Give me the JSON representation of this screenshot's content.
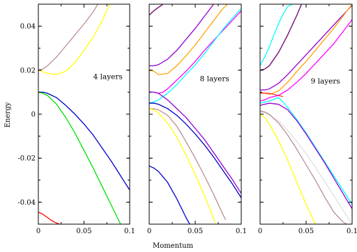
{
  "chart_data": {
    "type": "line",
    "xlabel": "Momentum",
    "ylabel": "Energy",
    "xlim": [
      0,
      0.1
    ],
    "ylim": [
      -0.05,
      0.05
    ],
    "x_ticks": [
      {
        "value": 0,
        "label": "0"
      },
      {
        "value": 0.05,
        "label": "0.05"
      },
      {
        "value": 0.1,
        "label": "0.1"
      }
    ],
    "y_ticks": [
      {
        "value": 0.04,
        "label": "0.04"
      },
      {
        "value": 0.02,
        "label": "0.02"
      },
      {
        "value": 0,
        "label": "0"
      },
      {
        "value": -0.02,
        "label": "-0.02"
      },
      {
        "value": -0.04,
        "label": "-0.04"
      }
    ],
    "panels": [
      {
        "annotation": "4 layers",
        "annotation_at": [
          0.06,
          0.016
        ],
        "series": [
          {
            "color": "#bc8f8f",
            "x": [
              0,
              0.005,
              0.01,
              0.02,
              0.03,
              0.04,
              0.05,
              0.06,
              0.065
            ],
            "y": [
              0.02,
              0.0205,
              0.022,
              0.026,
              0.031,
              0.036,
              0.041,
              0.0465,
              0.05
            ]
          },
          {
            "color": "#ffff00",
            "x": [
              0,
              0.01,
              0.02,
              0.03,
              0.04,
              0.05,
              0.06,
              0.07,
              0.078
            ],
            "y": [
              0.02,
              0.0185,
              0.018,
              0.0195,
              0.0235,
              0.029,
              0.035,
              0.0425,
              0.05
            ]
          },
          {
            "color": "#0000cd",
            "x": [
              0,
              0.005,
              0.01,
              0.02,
              0.03,
              0.04,
              0.05,
              0.06,
              0.07,
              0.08,
              0.09,
              0.1
            ],
            "y": [
              0.01,
              0.01,
              0.0095,
              0.0075,
              0.004,
              0.0,
              -0.0045,
              -0.0095,
              -0.0155,
              -0.0215,
              -0.028,
              -0.0345
            ]
          },
          {
            "color": "#00e000",
            "x": [
              0,
              0.005,
              0.01,
              0.02,
              0.03,
              0.04,
              0.05,
              0.06,
              0.07,
              0.08,
              0.09
            ],
            "y": [
              0.01,
              0.0095,
              0.0085,
              0.0045,
              -0.0015,
              -0.0085,
              -0.0165,
              -0.0245,
              -0.033,
              -0.0415,
              -0.05
            ]
          },
          {
            "color": "#ff0000",
            "x": [
              0,
              0.005,
              0.01,
              0.015,
              0.02,
              0.023
            ],
            "y": [
              -0.0445,
              -0.0455,
              -0.047,
              -0.0485,
              -0.0495,
              -0.05
            ]
          }
        ]
      },
      {
        "annotation": "8 layers",
        "annotation_at": [
          0.055,
          0.015
        ],
        "series": [
          {
            "color": "#6b006b",
            "x": [
              0,
              0.005,
              0.01,
              0.015
            ],
            "y": [
              0.045,
              0.047,
              0.0485,
              0.05
            ]
          },
          {
            "color": "#9400d3",
            "x": [
              0,
              0.005,
              0.01,
              0.02,
              0.03,
              0.04,
              0.05,
              0.06,
              0.07
            ],
            "y": [
              0.022,
              0.022,
              0.0225,
              0.025,
              0.029,
              0.034,
              0.039,
              0.0445,
              0.05
            ]
          },
          {
            "color": "#ffa500",
            "x": [
              0,
              0.005,
              0.01,
              0.02,
              0.03,
              0.04,
              0.05,
              0.06,
              0.07,
              0.08,
              0.085
            ],
            "y": [
              0.02,
              0.0195,
              0.018,
              0.0185,
              0.022,
              0.0265,
              0.0315,
              0.037,
              0.0425,
              0.048,
              0.05
            ]
          },
          {
            "color": "#ff00ff",
            "x": [
              0,
              0.005,
              0.01,
              0.015,
              0.02,
              0.03,
              0.04,
              0.05,
              0.06,
              0.07,
              0.08,
              0.09,
              0.1
            ],
            "y": [
              0.01,
              0.01,
              0.0095,
              0.01,
              0.0115,
              0.0155,
              0.0195,
              0.024,
              0.029,
              0.0335,
              0.038,
              0.0425,
              0.047
            ]
          },
          {
            "color": "#00ffff",
            "x": [
              0,
              0.005,
              0.01,
              0.015,
              0.02,
              0.03,
              0.04,
              0.05,
              0.06,
              0.07,
              0.08,
              0.09,
              0.1
            ],
            "y": [
              0.005,
              0.0055,
              0.0065,
              0.008,
              0.0095,
              0.0135,
              0.018,
              0.0225,
              0.0275,
              0.033,
              0.0385,
              0.0435,
              0.048
            ]
          },
          {
            "color": "#9400d3",
            "x": [
              0,
              0.005,
              0.01,
              0.02,
              0.03,
              0.04,
              0.05,
              0.06,
              0.07,
              0.08,
              0.09,
              0.1
            ],
            "y": [
              0.01,
              0.01,
              0.0095,
              0.0065,
              0.0025,
              -0.0015,
              -0.0065,
              -0.0115,
              -0.0175,
              -0.0235,
              -0.0295,
              -0.036
            ]
          },
          {
            "color": "#0000cd",
            "x": [
              0,
              0.005,
              0.01,
              0.02,
              0.03,
              0.04,
              0.05,
              0.06,
              0.07,
              0.08,
              0.09,
              0.1
            ],
            "y": [
              0.005,
              0.005,
              0.0045,
              0.0025,
              -0.0005,
              -0.0045,
              -0.009,
              -0.014,
              -0.0195,
              -0.0255,
              -0.0315,
              -0.038
            ]
          },
          {
            "color": "#bc8f8f",
            "x": [
              0,
              0.005,
              0.01,
              0.02,
              0.03,
              0.04,
              0.05,
              0.06,
              0.07,
              0.08,
              0.083
            ],
            "y": [
              0.0025,
              0.0025,
              0.002,
              -0.0005,
              -0.0055,
              -0.0125,
              -0.02,
              -0.028,
              -0.0365,
              -0.0455,
              -0.048
            ]
          },
          {
            "color": "#ffff00",
            "x": [
              0,
              0.005,
              0.01,
              0.02,
              0.03,
              0.04,
              0.05,
              0.06,
              0.07,
              0.072
            ],
            "y": [
              0.0025,
              0.002,
              0.0005,
              -0.004,
              -0.0105,
              -0.0185,
              -0.0275,
              -0.037,
              -0.0475,
              -0.0495
            ]
          },
          {
            "color": "#0000cd",
            "x": [
              0,
              0.005,
              0.01,
              0.02,
              0.03,
              0.04,
              0.044
            ],
            "y": [
              -0.0235,
              -0.0245,
              -0.026,
              -0.031,
              -0.0385,
              -0.047,
              -0.05
            ]
          }
        ]
      },
      {
        "annotation": "9 layers",
        "annotation_at": [
          0.055,
          0.014
        ],
        "series": [
          {
            "color": "#6b006b",
            "x": [
              0,
              0.005,
              0.01,
              0.02,
              0.03,
              0.04,
              0.045
            ],
            "y": [
              0.02,
              0.0205,
              0.022,
              0.028,
              0.036,
              0.045,
              0.05
            ]
          },
          {
            "color": "#00ffff",
            "x": [
              0,
              0.005,
              0.01,
              0.015,
              0.02,
              0.025,
              0.03,
              0.035
            ],
            "y": [
              0.022,
              0.026,
              0.0305,
              0.036,
              0.041,
              0.0455,
              0.049,
              0.05
            ]
          },
          {
            "color": "#9400d3",
            "x": [
              0,
              0.005,
              0.01,
              0.02,
              0.03,
              0.04,
              0.05,
              0.06,
              0.07,
              0.08,
              0.09,
              0.1
            ],
            "y": [
              0.011,
              0.011,
              0.0115,
              0.014,
              0.018,
              0.0225,
              0.027,
              0.0315,
              0.036,
              0.0405,
              0.045,
              0.0495
            ]
          },
          {
            "color": "#ffa500",
            "x": [
              0,
              0.005,
              0.01,
              0.02,
              0.03,
              0.04,
              0.05,
              0.06,
              0.07,
              0.08,
              0.09,
              0.1
            ],
            "y": [
              0.01,
              0.0095,
              0.009,
              0.0105,
              0.0145,
              0.0195,
              0.024,
              0.029,
              0.034,
              0.039,
              0.0445,
              0.05
            ]
          },
          {
            "color": "#ff00ff",
            "x": [
              0,
              0.005,
              0.01,
              0.02,
              0.03,
              0.04,
              0.05,
              0.06,
              0.07,
              0.08,
              0.09,
              0.1
            ],
            "y": [
              0.006,
              0.0065,
              0.0075,
              0.0085,
              0.011,
              0.0145,
              0.0185,
              0.023,
              0.0275,
              0.032,
              0.0375,
              0.043
            ]
          },
          {
            "color": "#ff3030",
            "x": [
              0,
              0.005,
              0.01,
              0.015,
              0.02,
              0.025
            ],
            "y": [
              0.0095,
              0.0095,
              0.0095,
              0.009,
              0.0085,
              0.008
            ]
          },
          {
            "color": "#00ffff",
            "x": [
              0,
              0.005,
              0.01,
              0.02,
              0.025,
              0.03,
              0.04,
              0.05,
              0.06,
              0.07,
              0.08,
              0.09,
              0.1
            ],
            "y": [
              0.005,
              0.0055,
              0.006,
              0.0075,
              0.0055,
              0.003,
              -0.0025,
              -0.0085,
              -0.015,
              -0.0215,
              -0.028,
              -0.0345,
              -0.041
            ]
          },
          {
            "color": "#9400d3",
            "x": [
              0,
              0.005,
              0.01,
              0.02,
              0.03,
              0.04,
              0.05,
              0.06,
              0.07,
              0.08,
              0.09,
              0.1
            ],
            "y": [
              0.004,
              0.0045,
              0.005,
              0.0045,
              0.002,
              -0.003,
              -0.009,
              -0.0155,
              -0.022,
              -0.029,
              -0.036,
              -0.043
            ]
          },
          {
            "color": "#e0e0e0",
            "x": [
              0,
              0.005,
              0.01,
              0.02,
              0.03,
              0.04,
              0.05,
              0.06,
              0.07,
              0.08,
              0.09,
              0.1
            ],
            "y": [
              0.001,
              0.0005,
              -0.0005,
              -0.003,
              -0.0075,
              -0.0125,
              -0.018,
              -0.024,
              -0.0305,
              -0.037,
              -0.0435,
              -0.05
            ]
          },
          {
            "color": "#bc8f8f",
            "x": [
              0,
              0.005,
              0.01,
              0.02,
              0.03,
              0.04,
              0.05,
              0.06,
              0.07,
              0.08,
              0.09,
              0.094
            ],
            "y": [
              0.0015,
              0.001,
              0.0,
              -0.004,
              -0.0095,
              -0.016,
              -0.023,
              -0.03,
              -0.0375,
              -0.0445,
              -0.049,
              -0.05
            ]
          },
          {
            "color": "#ffff00",
            "x": [
              0,
              0.005,
              0.01,
              0.02,
              0.03,
              0.04,
              0.05,
              0.06
            ],
            "y": [
              0.0,
              -0.0015,
              -0.0045,
              -0.012,
              -0.021,
              -0.031,
              -0.041,
              -0.05
            ]
          }
        ]
      }
    ]
  }
}
